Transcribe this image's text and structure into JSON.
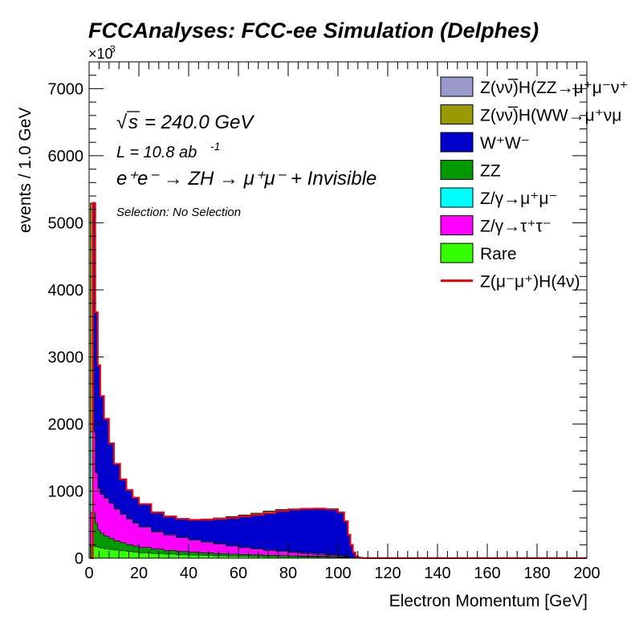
{
  "chart_data": {
    "type": "area",
    "stacked": true,
    "histogram": true,
    "title": "FCCAnalyses: FCC-ee Simulation (Delphes)",
    "xlabel": "Electron Momentum [GeV]",
    "ylabel": "events / 1.0 GeV",
    "y_multiplier": "×10",
    "y_multiplier_exp": "3",
    "xlim": [
      0,
      200
    ],
    "ylim": [
      0,
      7400
    ],
    "xticks": [
      "0",
      "20",
      "40",
      "60",
      "80",
      "100",
      "120",
      "140",
      "160",
      "180",
      "200"
    ],
    "yticks": [
      "0",
      "1000",
      "2000",
      "3000",
      "4000",
      "5000",
      "6000",
      "7000"
    ],
    "legend_position": "top-right",
    "annotations": {
      "sqrt_s": "= 240.0 GeV",
      "lumi_prefix": "L = 10.8 ab",
      "lumi_exp": "-1",
      "process": "e⁺e⁻ → ZH → μ⁺μ⁻ + Invisible",
      "selection": "Selection: No Selection"
    },
    "legend": [
      {
        "label": "Z(νν̅)H(ZZ→μ⁺μ⁻ν⁺",
        "color": "#9999cc",
        "kind": "box"
      },
      {
        "label": "Z(νν̅)H(WW→μ⁺νμ",
        "color": "#999900",
        "kind": "box"
      },
      {
        "label": "W⁺W⁻",
        "color": "#0000cc",
        "kind": "box"
      },
      {
        "label": "ZZ",
        "color": "#009900",
        "kind": "box"
      },
      {
        "label": "Z/γ→μ⁺μ⁻",
        "color": "#00ffff",
        "kind": "box"
      },
      {
        "label": "Z/γ→τ⁺τ⁻",
        "color": "#ff00ff",
        "kind": "box"
      },
      {
        "label": "Rare",
        "color": "#33ff00",
        "kind": "box"
      },
      {
        "label": "Z(μ⁻μ⁺)H(4ν)",
        "color": "#ff0000",
        "kind": "line"
      }
    ],
    "x": [
      0.5,
      1.5,
      2.5,
      3.5,
      4.5,
      6,
      8,
      10,
      12.5,
      15,
      17.5,
      20,
      25,
      30,
      35,
      40,
      45,
      50,
      55,
      60,
      65,
      70,
      75,
      80,
      85,
      90,
      95,
      100,
      102.5,
      104,
      105,
      106,
      107,
      108,
      109,
      110,
      112,
      115,
      120,
      200
    ],
    "series": [
      {
        "name": "Rare",
        "color": "#33ff00",
        "values": [
          0,
          180,
          170,
          160,
          150,
          140,
          130,
          120,
          110,
          100,
          90,
          80,
          70,
          60,
          50,
          45,
          40,
          35,
          30,
          28,
          25,
          22,
          20,
          18,
          16,
          14,
          12,
          10,
          8,
          5,
          3,
          2,
          1,
          0,
          0,
          0,
          0,
          0,
          0,
          0
        ]
      },
      {
        "name": "ZZ",
        "color": "#009900",
        "values": [
          0,
          500,
          350,
          260,
          220,
          190,
          165,
          140,
          120,
          100,
          90,
          80,
          65,
          55,
          48,
          42,
          38,
          34,
          30,
          27,
          25,
          22,
          20,
          18,
          16,
          15,
          13,
          10,
          8,
          5,
          3,
          2,
          1,
          0,
          0,
          0,
          0,
          0,
          0,
          0
        ]
      },
      {
        "name": "Z/γ→τ⁺τ⁻",
        "color": "#ff00ff",
        "values": [
          0,
          1200,
          750,
          620,
          580,
          560,
          520,
          470,
          420,
          380,
          340,
          300,
          255,
          230,
          205,
          180,
          160,
          140,
          120,
          100,
          85,
          72,
          60,
          48,
          38,
          28,
          18,
          10,
          6,
          3,
          1,
          0,
          0,
          0,
          0,
          0,
          0,
          0,
          0,
          0
        ]
      },
      {
        "name": "Z/γ→μ⁺μ⁻",
        "color": "#00ffff",
        "values": [
          0,
          10,
          10,
          10,
          10,
          10,
          10,
          10,
          10,
          10,
          10,
          10,
          10,
          10,
          10,
          10,
          10,
          10,
          10,
          10,
          10,
          10,
          10,
          10,
          10,
          10,
          10,
          8,
          6,
          4,
          2,
          1,
          0,
          0,
          0,
          0,
          0,
          0,
          0,
          0
        ]
      },
      {
        "name": "W⁺W⁻",
        "color": "#0000cc",
        "values": [
          0,
          3400,
          2380,
          1820,
          1450,
          1170,
          880,
          660,
          510,
          420,
          365,
          330,
          275,
          260,
          267,
          288,
          318,
          361,
          405,
          450,
          495,
          540,
          588,
          626,
          650,
          665,
          670,
          640,
          520,
          330,
          190,
          80,
          30,
          10,
          5,
          2,
          0,
          0,
          0,
          0
        ]
      },
      {
        "name": "Z(νν̅)H(WW→μ⁺νμ",
        "color": "#999900",
        "values": [
          0,
          5,
          5,
          5,
          5,
          5,
          5,
          5,
          5,
          5,
          5,
          5,
          5,
          5,
          5,
          5,
          5,
          5,
          5,
          5,
          5,
          5,
          5,
          5,
          5,
          5,
          5,
          3,
          2,
          1,
          0,
          0,
          0,
          0,
          0,
          0,
          0,
          0,
          0,
          0
        ]
      },
      {
        "name": "Z(νν̅)H(ZZ→μ⁺μ⁻ν⁺",
        "color": "#9999cc",
        "values": [
          0,
          2,
          2,
          2,
          2,
          2,
          2,
          2,
          2,
          2,
          2,
          2,
          2,
          2,
          2,
          2,
          2,
          2,
          2,
          2,
          2,
          2,
          2,
          2,
          2,
          2,
          2,
          1,
          1,
          0,
          0,
          0,
          0,
          0,
          0,
          0,
          0,
          0,
          0,
          0
        ]
      }
    ],
    "signal": {
      "name": "Z(μ⁻μ⁺)H(4ν)",
      "color": "#ff0000",
      "values": "total_of_stack"
    }
  }
}
